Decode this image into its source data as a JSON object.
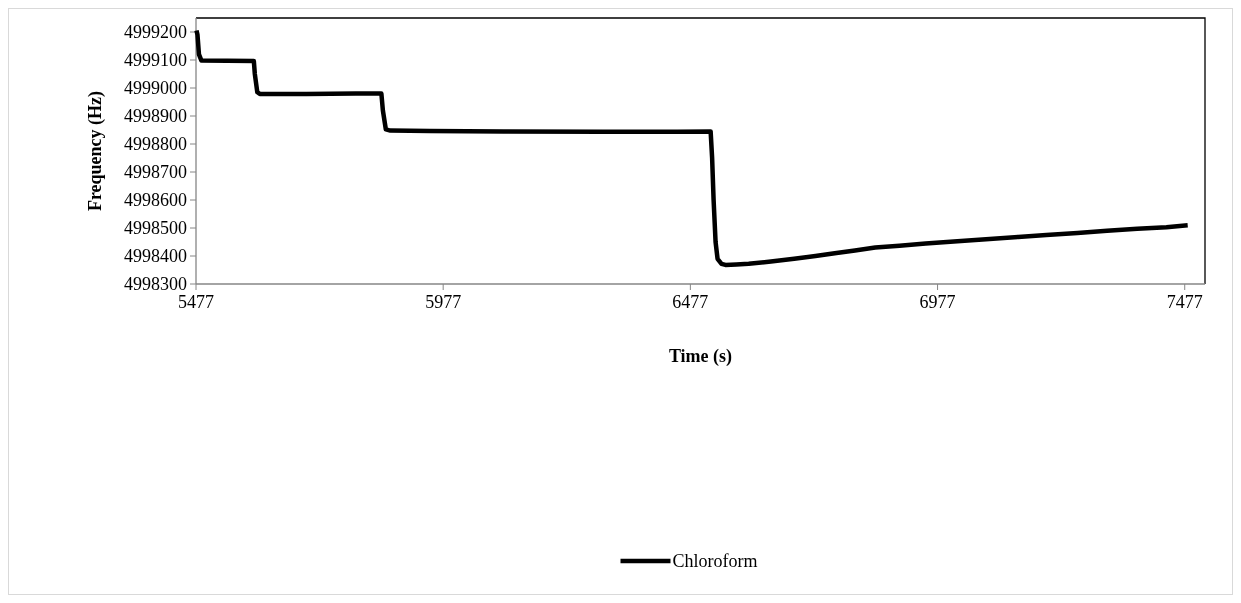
{
  "chart_data": {
    "type": "line",
    "xlabel": "Time (s)",
    "ylabel": "Frequency (Hz)",
    "xlim": [
      5477,
      7518
    ],
    "ylim": [
      4998300,
      4999250
    ],
    "xticks": [
      5477,
      5977,
      6477,
      6977,
      7477
    ],
    "yticks": [
      4998300,
      4998400,
      4998500,
      4998600,
      4998700,
      4998800,
      4998900,
      4999000,
      4999100,
      4999200
    ],
    "legend": "bottom",
    "grid": false,
    "line_style": "solid",
    "series": [
      {
        "name": "Chloroform",
        "color": "#000000",
        "x": [
          5478,
          5480,
          5483,
          5488,
          5540,
          5594,
          5596,
          5601,
          5606,
          5700,
          5800,
          5852,
          5855,
          5861,
          5870,
          5950,
          6100,
          6300,
          6450,
          6518,
          6521,
          6524,
          6528,
          6532,
          6540,
          6548,
          6570,
          6595,
          6640,
          6687,
          6730,
          6769,
          6810,
          6851,
          6900,
          6953,
          7010,
          7075,
          7140,
          7197,
          7260,
          7320,
          7381,
          7440,
          7483
        ],
        "values": [
          4999205,
          4999190,
          4999120,
          4999098,
          4999097,
          4999096,
          4999050,
          4998985,
          4998979,
          4998979,
          4998980,
          4998980,
          4998920,
          4998852,
          4998848,
          4998846,
          4998845,
          4998844,
          4998844,
          4998845,
          4998750,
          4998600,
          4998450,
          4998390,
          4998372,
          4998368,
          4998370,
          4998372,
          4998380,
          4998390,
          4998400,
          4998410,
          4998420,
          4998430,
          4998437,
          4998445,
          4998452,
          4998460,
          4998468,
          4998475,
          4998482,
          4998490,
          4998497,
          4998503,
          4998510
        ]
      }
    ]
  }
}
